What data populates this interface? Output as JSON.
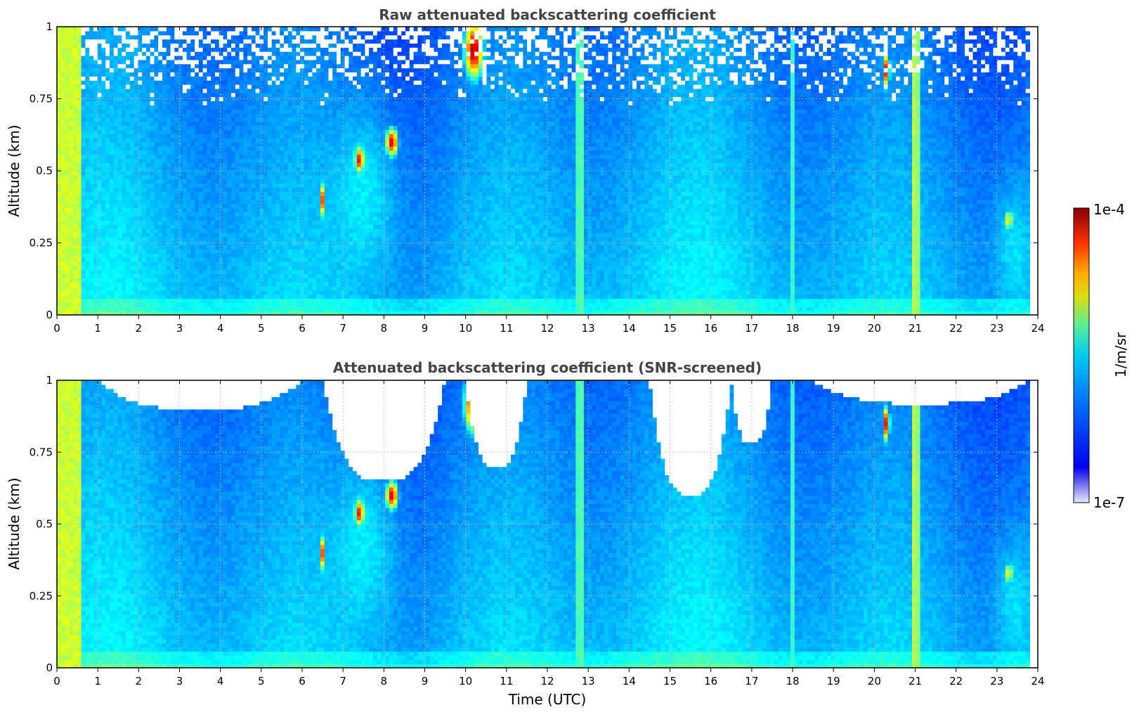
{
  "chart_data": [
    {
      "type": "heatmap",
      "title": "Raw attenuated backscattering coefficient",
      "xlabel": "",
      "ylabel": "Altitude (km)",
      "xlim": [
        0,
        24
      ],
      "ylim": [
        0,
        1
      ],
      "x_ticks": [
        "0",
        "1",
        "2",
        "3",
        "4",
        "5",
        "6",
        "7",
        "8",
        "9",
        "10",
        "11",
        "12",
        "13",
        "14",
        "15",
        "16",
        "17",
        "18",
        "19",
        "20",
        "21",
        "22",
        "23",
        "24"
      ],
      "y_ticks": [
        "0",
        "0.25",
        "0.5",
        "0.75",
        "1"
      ],
      "grid": true,
      "data_time_range": [
        0,
        23.8
      ],
      "clear_sky_stripes_utc": [
        0.1,
        12.8,
        21.0
      ],
      "features": [
        {
          "time": 10.2,
          "altitude_range": [
            0.8,
            1.0
          ],
          "level": "high"
        },
        {
          "time": 8.2,
          "altitude_range": [
            0.55,
            0.65
          ],
          "level": "high"
        },
        {
          "time": 7.4,
          "altitude_range": [
            0.5,
            0.58
          ],
          "level": "high"
        },
        {
          "time": 20.3,
          "altitude_range": [
            0.8,
            0.9
          ],
          "level": "high"
        },
        {
          "time": 23.3,
          "altitude_range": [
            0.3,
            0.35
          ],
          "level": "high"
        }
      ]
    },
    {
      "type": "heatmap",
      "title": "Attenuated backscattering coefficient (SNR-screened)",
      "xlabel": "Time (UTC)",
      "ylabel": "Altitude (km)",
      "xlim": [
        0,
        24
      ],
      "ylim": [
        0,
        1
      ],
      "x_ticks": [
        "0",
        "1",
        "2",
        "3",
        "4",
        "5",
        "6",
        "7",
        "8",
        "9",
        "10",
        "11",
        "12",
        "13",
        "14",
        "15",
        "16",
        "17",
        "18",
        "19",
        "20",
        "21",
        "22",
        "23",
        "24"
      ],
      "y_ticks": [
        "0",
        "0.25",
        "0.5",
        "0.75",
        "1"
      ],
      "grid": true,
      "data_time_range": [
        0,
        23.8
      ],
      "screened_regions_utc": [
        {
          "time_range": [
            1.0,
            6.0
          ],
          "min_altitude": 0.9
        },
        {
          "time_range": [
            6.5,
            9.5
          ],
          "min_altitude": 0.65
        },
        {
          "time_range": [
            10.0,
            11.5
          ],
          "min_altitude": 0.7
        },
        {
          "time_range": [
            14.5,
            16.5
          ],
          "min_altitude": 0.6
        },
        {
          "time_range": [
            16.5,
            17.5
          ],
          "min_altitude": 0.78
        },
        {
          "time_range": [
            18.5,
            23.8
          ],
          "min_altitude": 0.92
        }
      ]
    }
  ],
  "colorbar": {
    "label": "1/m/sr",
    "max_label": "1e-4",
    "min_label": "1e-7",
    "colormap": "jet"
  },
  "colors": {
    "background_blue": "#1a66ff",
    "low_level": "#0022dd",
    "clear_stripe": "#33dd99",
    "high_level": "#cc1100"
  }
}
